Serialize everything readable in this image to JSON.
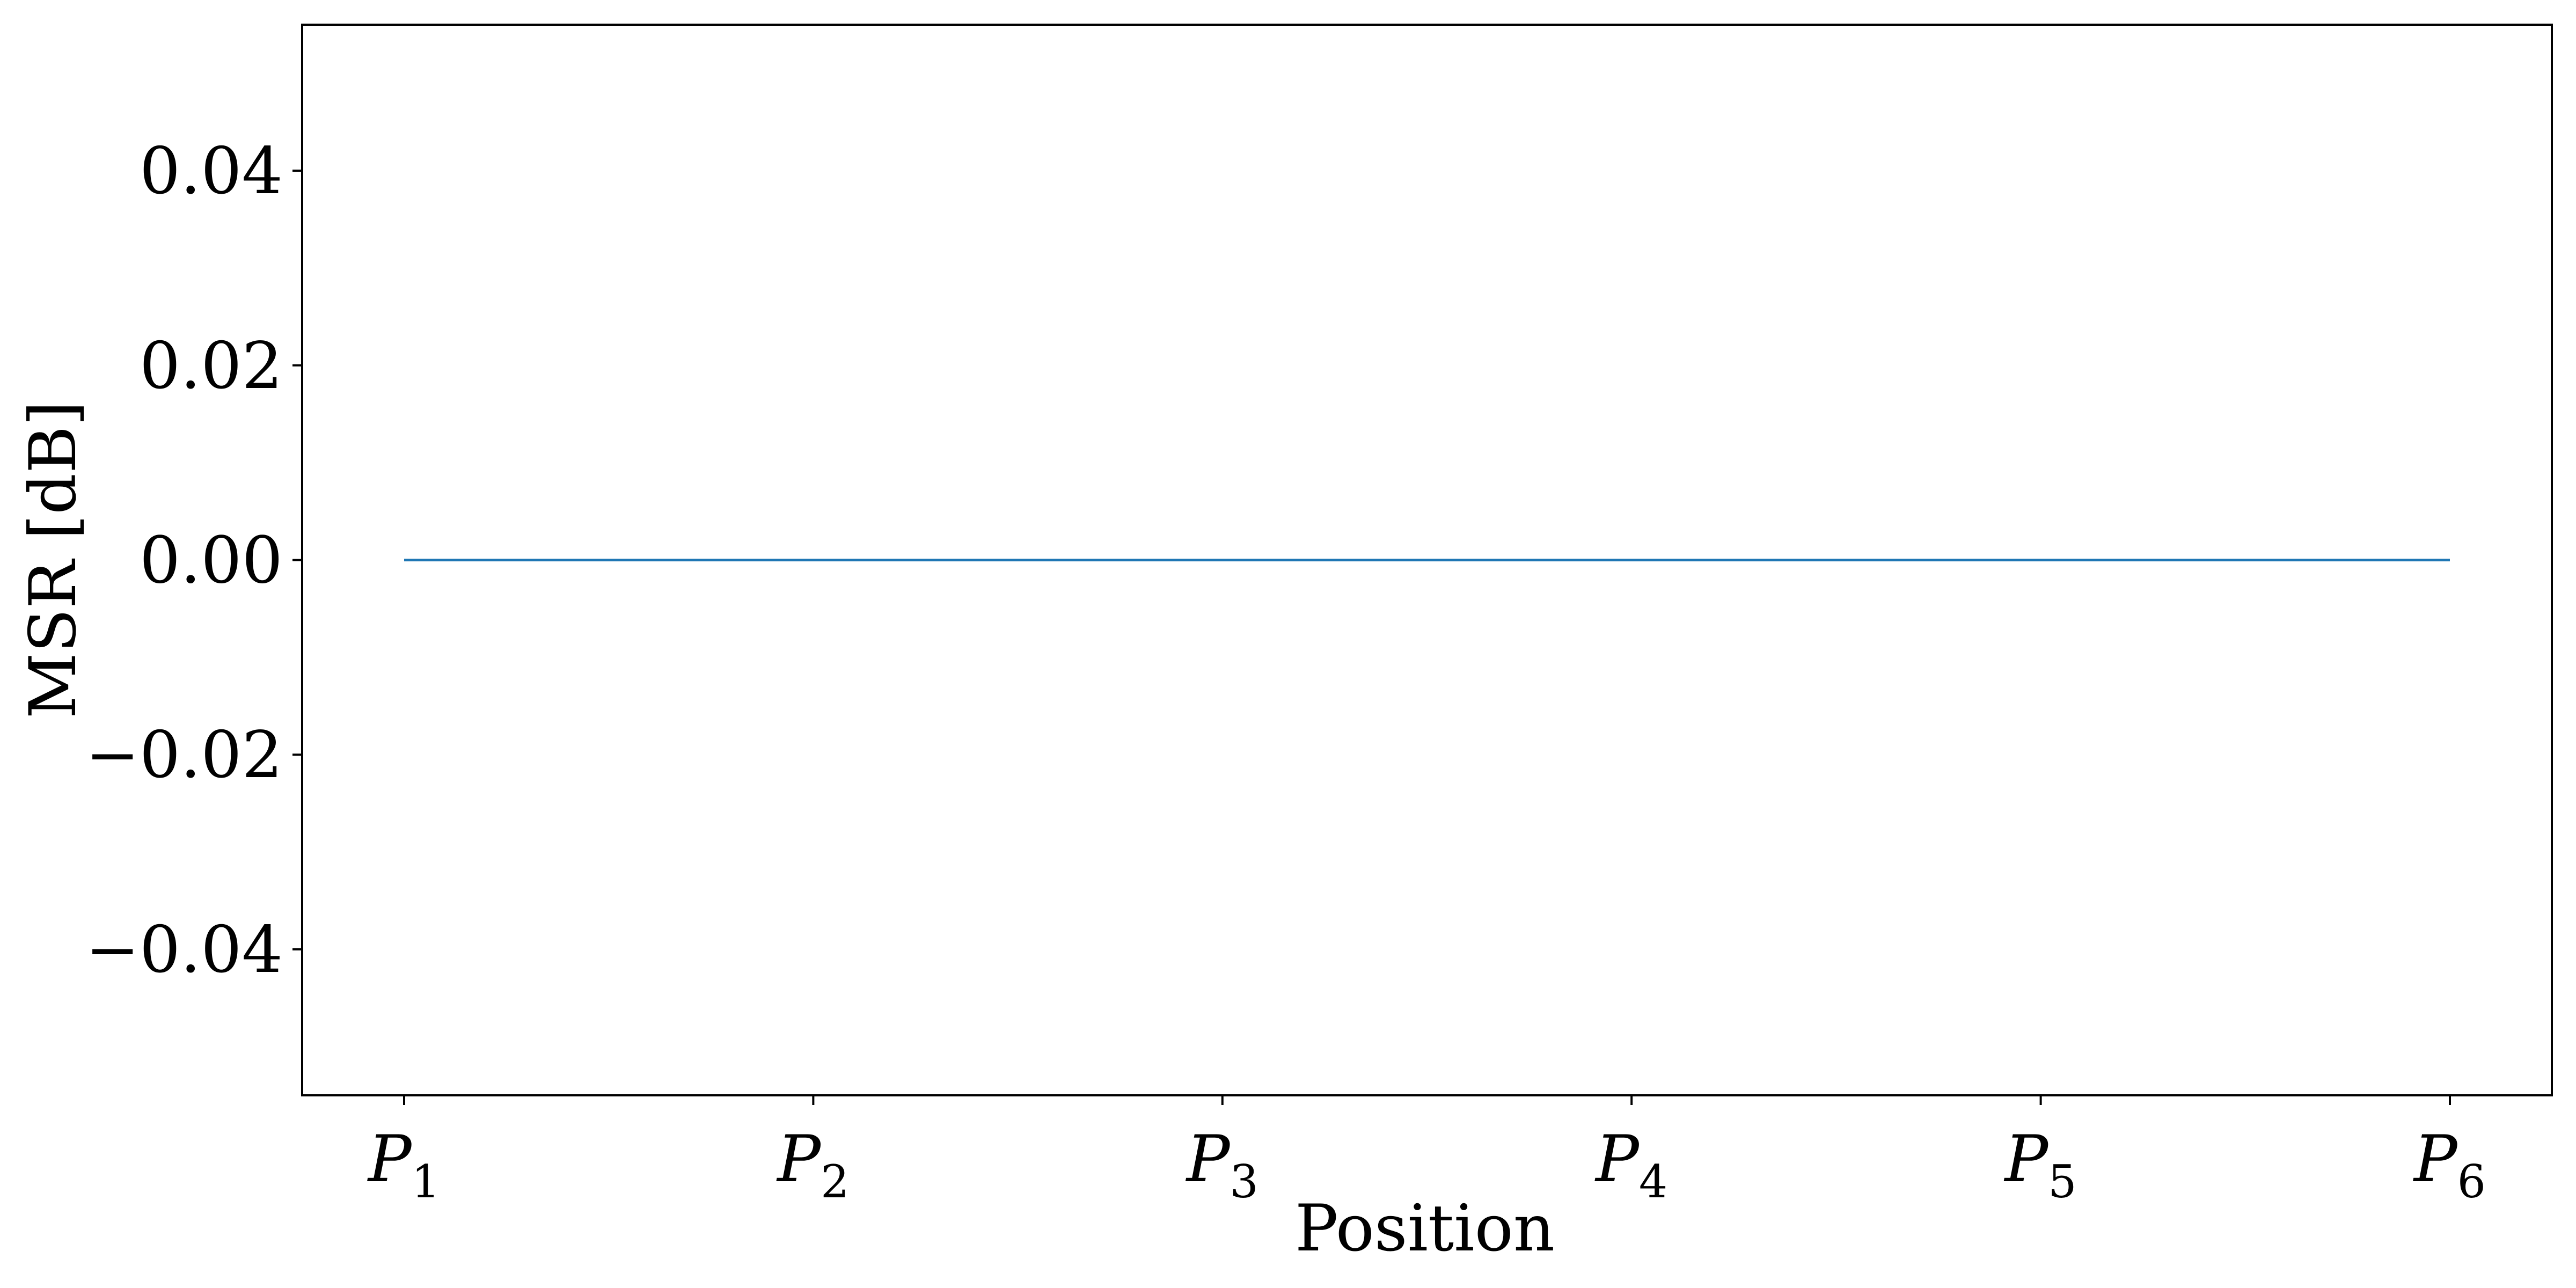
{
  "chart_data": {
    "type": "line",
    "xlabel": "Position",
    "ylabel": "MSR [dB]",
    "categories": [
      {
        "base": "P",
        "sub": "1"
      },
      {
        "base": "P",
        "sub": "2"
      },
      {
        "base": "P",
        "sub": "3"
      },
      {
        "base": "P",
        "sub": "4"
      },
      {
        "base": "P",
        "sub": "5"
      },
      {
        "base": "P",
        "sub": "6"
      }
    ],
    "series": [
      {
        "values": [
          0.0,
          0.0,
          0.0,
          0.0,
          0.0,
          0.0
        ],
        "color": "#1f77b4"
      }
    ],
    "ylim": [
      -0.055,
      0.055
    ],
    "yticks": [
      -0.04,
      -0.02,
      0.0,
      0.02,
      0.04
    ],
    "ytick_labels": [
      "−0.04",
      "−0.02",
      "0.00",
      "0.02",
      "0.04"
    ],
    "grid": false,
    "legend": false
  }
}
